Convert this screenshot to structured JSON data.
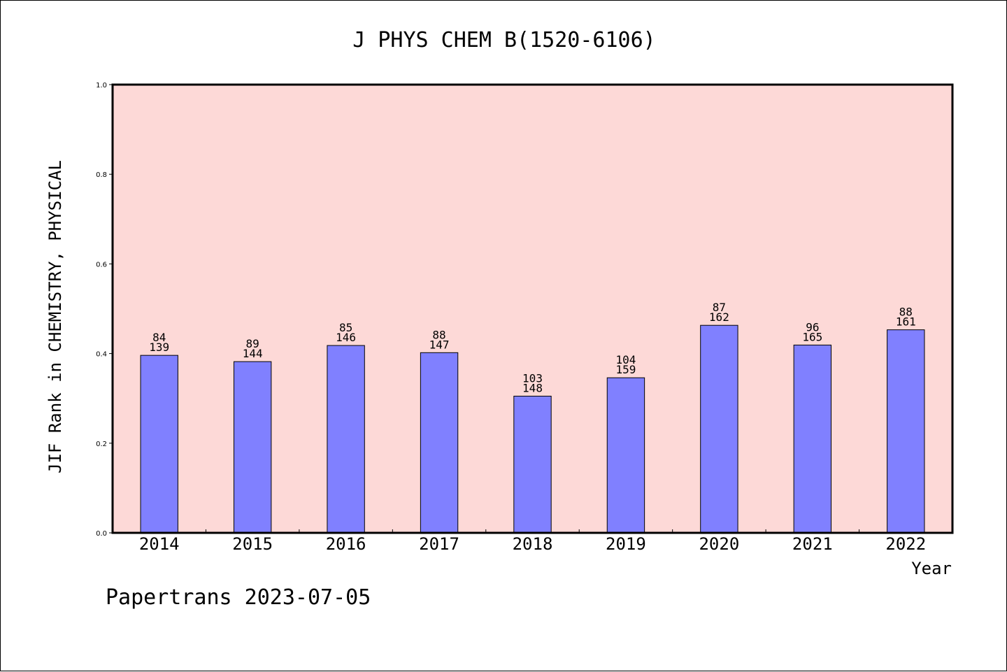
{
  "chart_data": {
    "type": "bar",
    "title": "J PHYS CHEM B(1520-6106)",
    "xlabel": "Year",
    "ylabel": "JIF Rank in CHEMISTRY, PHYSICAL",
    "ylim": [
      0.0,
      1.0
    ],
    "yticks": [
      "0.0",
      "0.2",
      "0.4",
      "0.6",
      "0.8",
      "1.0"
    ],
    "categories": [
      "2014",
      "2015",
      "2016",
      "2017",
      "2018",
      "2019",
      "2020",
      "2021",
      "2022"
    ],
    "values": [
      0.396,
      0.382,
      0.418,
      0.402,
      0.305,
      0.346,
      0.463,
      0.419,
      0.453
    ],
    "labels_top": [
      "84",
      "89",
      "85",
      "88",
      "103",
      "104",
      "87",
      "96",
      "88"
    ],
    "labels_bottom": [
      "139",
      "144",
      "146",
      "147",
      "148",
      "159",
      "162",
      "165",
      "161"
    ],
    "grid": false,
    "colors": {
      "plot_background": "#fdd9d7",
      "bar_fill": "#8080ff",
      "bar_stroke": "#000000"
    }
  },
  "footer": "Papertrans 2023-07-05"
}
